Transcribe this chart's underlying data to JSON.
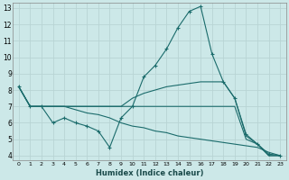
{
  "xlabel": "Humidex (Indice chaleur)",
  "bg_color": "#cce8e8",
  "grid_color": "#b8d4d4",
  "line_color": "#1a6b6b",
  "line_main": {
    "x": [
      0,
      1,
      2,
      3,
      4,
      5,
      6,
      7,
      8,
      9,
      10,
      11,
      12,
      13,
      14,
      15,
      16,
      17,
      18,
      19,
      20,
      21,
      22,
      23
    ],
    "y": [
      8.2,
      7.0,
      7.0,
      6.0,
      6.3,
      6.0,
      5.8,
      5.5,
      4.5,
      6.3,
      7.0,
      8.8,
      9.5,
      10.5,
      11.8,
      12.8,
      13.1,
      10.2,
      8.5,
      7.5,
      5.3,
      4.7,
      4.1,
      4.0
    ]
  },
  "line_top": {
    "x": [
      0,
      1,
      2,
      3,
      4,
      5,
      6,
      7,
      8,
      9,
      10,
      11,
      12,
      13,
      14,
      15,
      16,
      17,
      18,
      19,
      20,
      21,
      22,
      23
    ],
    "y": [
      8.2,
      7.0,
      7.0,
      7.0,
      7.0,
      7.0,
      7.0,
      7.0,
      7.0,
      7.0,
      7.5,
      7.8,
      8.0,
      8.2,
      8.3,
      8.4,
      8.5,
      8.5,
      8.5,
      7.5,
      5.2,
      4.7,
      4.0,
      4.0
    ]
  },
  "line_mid": {
    "x": [
      0,
      1,
      2,
      3,
      4,
      5,
      6,
      7,
      8,
      9,
      10,
      11,
      12,
      13,
      14,
      15,
      16,
      17,
      18,
      19,
      20,
      21,
      22,
      23
    ],
    "y": [
      8.2,
      7.0,
      7.0,
      7.0,
      7.0,
      7.0,
      7.0,
      7.0,
      7.0,
      7.0,
      7.0,
      7.0,
      7.0,
      7.0,
      7.0,
      7.0,
      7.0,
      7.0,
      7.0,
      7.0,
      5.0,
      4.7,
      4.0,
      4.0
    ]
  },
  "line_bot": {
    "x": [
      0,
      1,
      2,
      3,
      4,
      5,
      6,
      7,
      8,
      9,
      10,
      11,
      12,
      13,
      14,
      15,
      16,
      17,
      18,
      19,
      20,
      21,
      22,
      23
    ],
    "y": [
      8.2,
      7.0,
      7.0,
      7.0,
      7.0,
      6.8,
      6.6,
      6.5,
      6.3,
      6.0,
      5.8,
      5.7,
      5.5,
      5.4,
      5.2,
      5.1,
      5.0,
      4.9,
      4.8,
      4.7,
      4.6,
      4.5,
      4.2,
      4.0
    ]
  },
  "ylim": [
    4,
    13
  ],
  "xlim": [
    0,
    23
  ],
  "yticks": [
    4,
    5,
    6,
    7,
    8,
    9,
    10,
    11,
    12,
    13
  ],
  "xticks": [
    0,
    1,
    2,
    3,
    4,
    5,
    6,
    7,
    8,
    9,
    10,
    11,
    12,
    13,
    14,
    15,
    16,
    17,
    18,
    19,
    20,
    21,
    22,
    23
  ]
}
